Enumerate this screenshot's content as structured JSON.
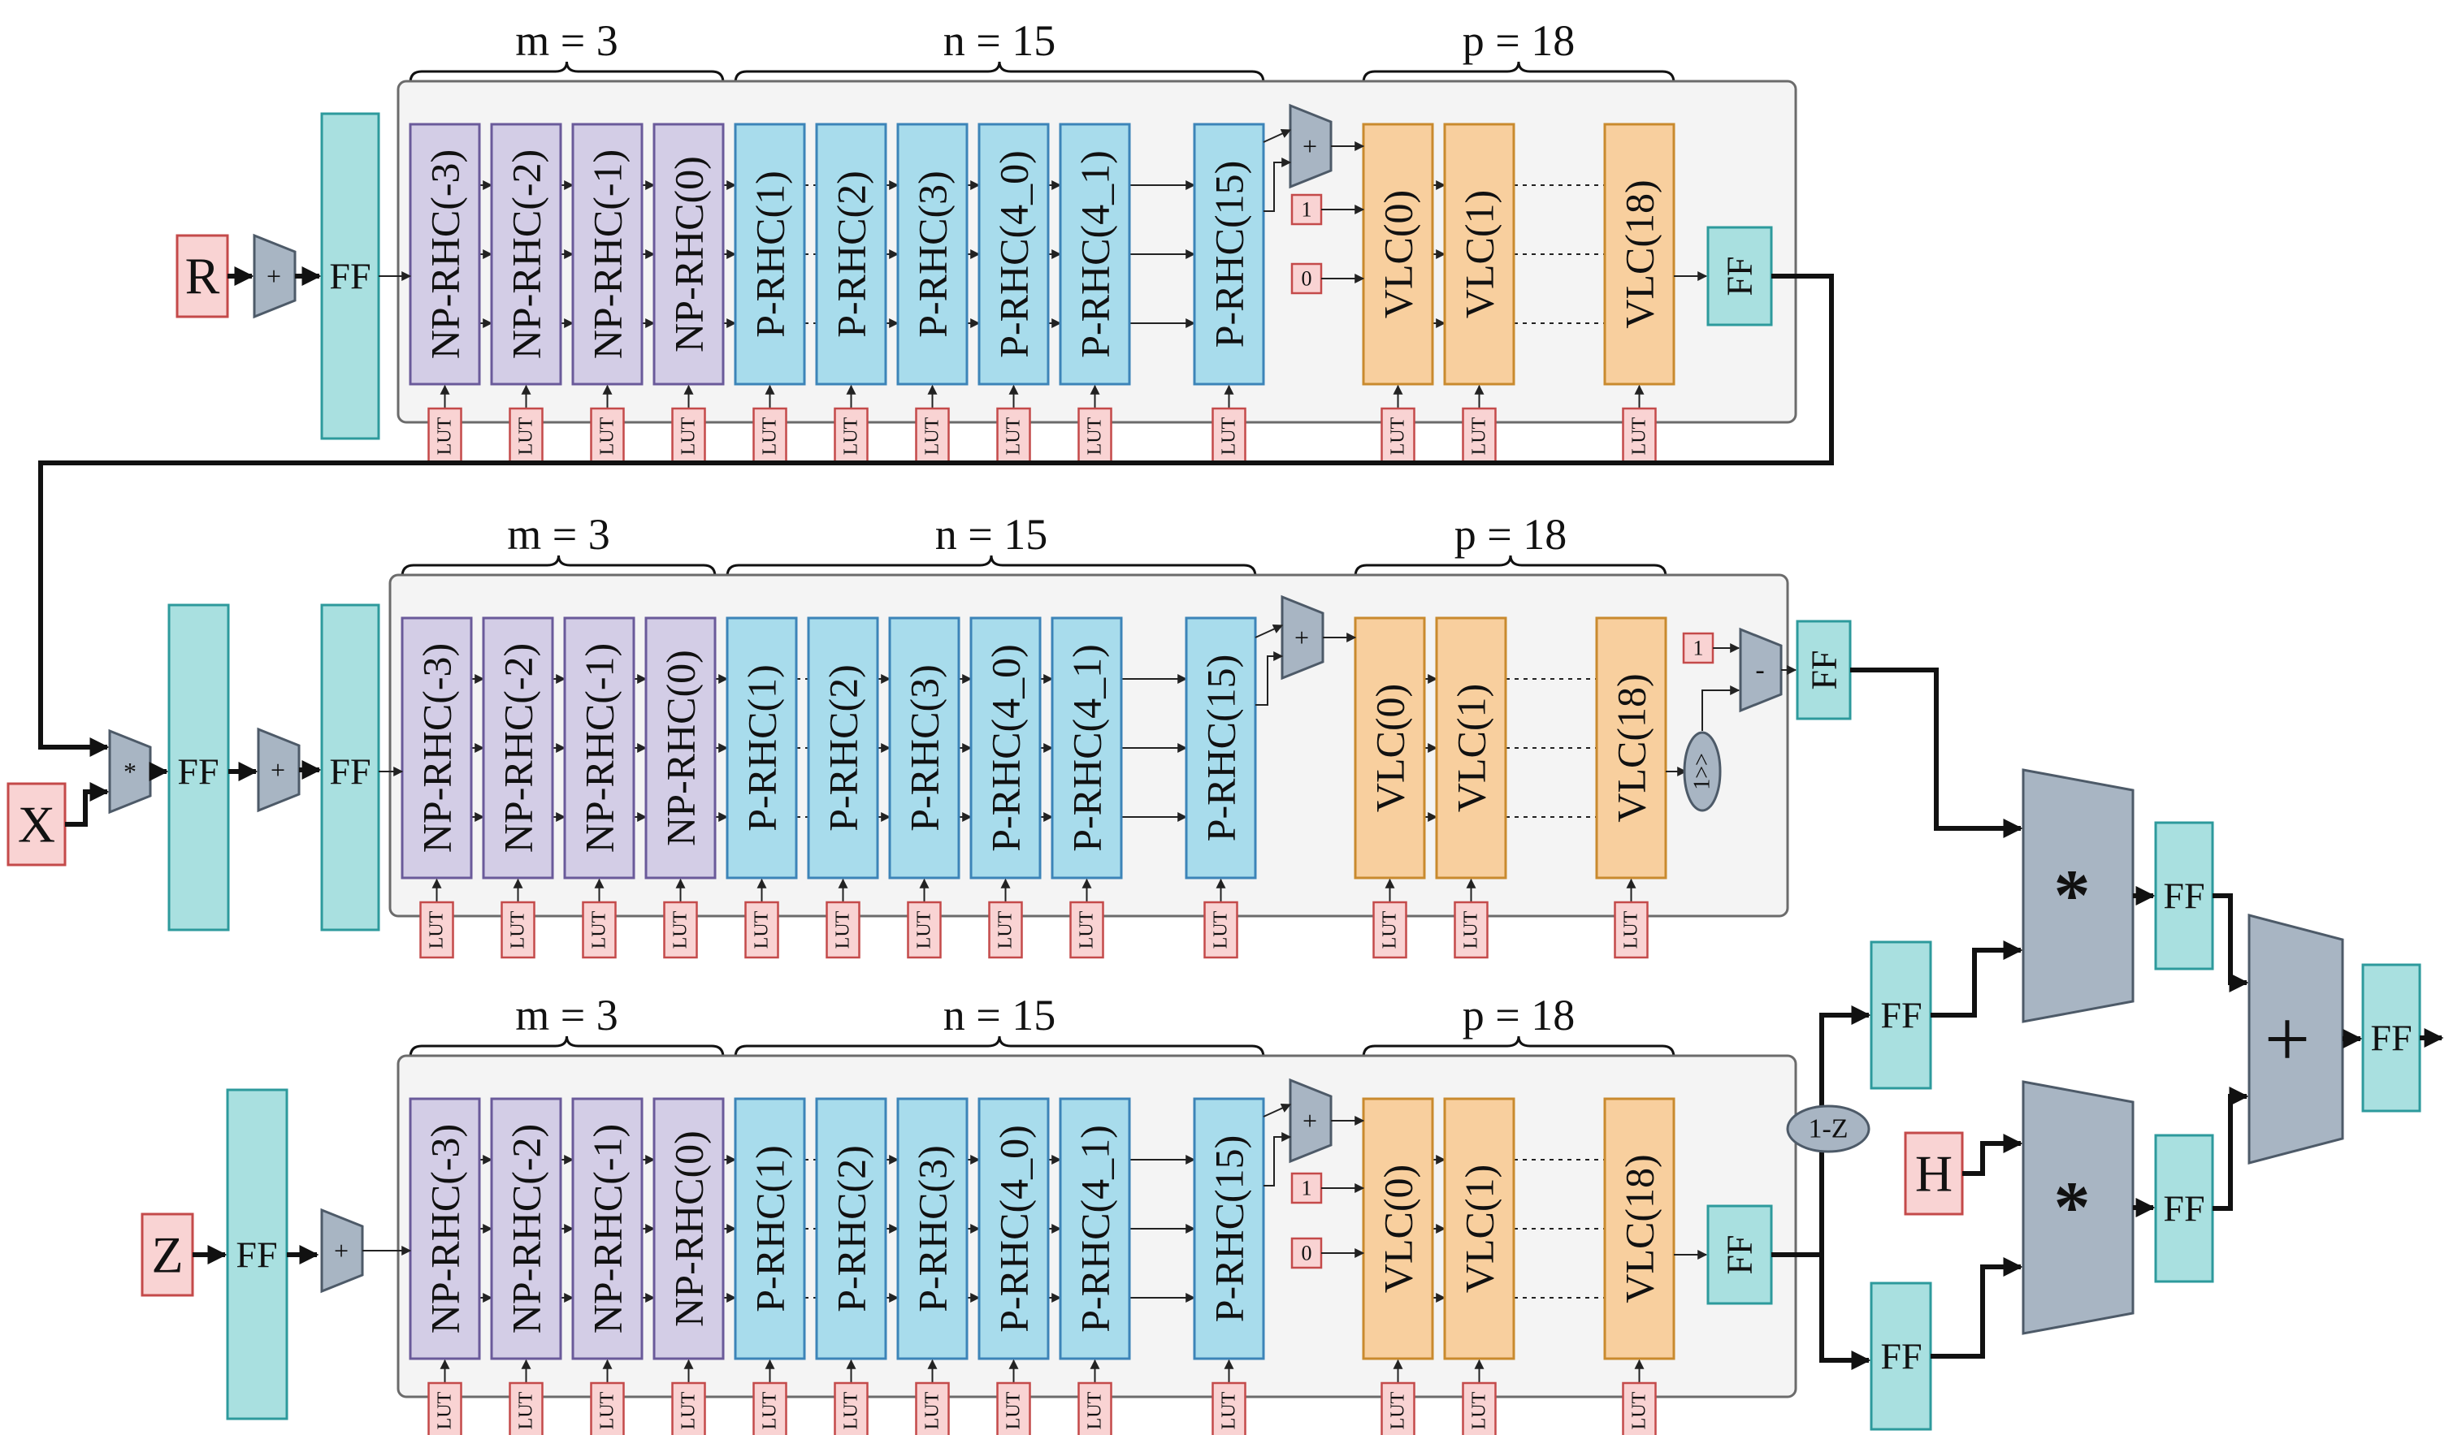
{
  "block_labels": {
    "np": [
      "NP-RHC(-3)",
      "NP-RHC(-2)",
      "NP-RHC(-1)",
      "NP-RHC(0)"
    ],
    "p": [
      "P-RHC(1)",
      "P-RHC(2)",
      "P-RHC(3)",
      "P-RHC(4_0)",
      "P-RHC(4_1)",
      "P-RHC(15)"
    ],
    "vlc": [
      "VLC(0)",
      "VLC(1)",
      "VLC(18)"
    ]
  },
  "lut_label": "LUT",
  "ff_label": "FF",
  "stages": [
    {
      "m_label": "m = 3",
      "n_label": "n = 15",
      "p_label": "p = 18",
      "input": "R",
      "ops": [
        "+"
      ],
      "const_a": "1",
      "const_b": "0"
    },
    {
      "m_label": "m = 3",
      "n_label": "n = 15",
      "p_label": "p = 18",
      "input": "X",
      "ops": [
        "*",
        "+"
      ],
      "const": "1",
      "shift": "1>>",
      "sub": "-"
    },
    {
      "m_label": "m = 3",
      "n_label": "n = 15",
      "p_label": "p = 18",
      "input": "Z",
      "ops": [
        "+"
      ],
      "const_a": "1",
      "const_b": "0"
    }
  ],
  "combine": {
    "one_minus_z": "1-Z",
    "h_input": "H",
    "mult_sym": "*",
    "add_sym": "+"
  },
  "colors": {
    "np": "#d3cde6",
    "p": "#a8dcec",
    "vlc": "#f8cf9e",
    "ff": "#a9e0e0",
    "input": "#f9d3d3",
    "op": "#a8b5c3"
  }
}
